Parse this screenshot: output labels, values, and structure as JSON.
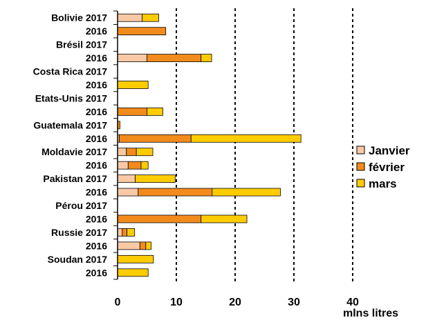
{
  "chart_data": {
    "type": "bar",
    "orientation": "horizontal",
    "stacked": true,
    "categories": [
      "Bolivie 2017",
      "2016",
      "Brésil 2017",
      "2016",
      "Costa Rica 2017",
      "2016",
      "Etats-Unis 2017",
      "2016",
      "Guatemala 2017",
      "2016",
      "Moldavie 2017",
      "2016",
      "Pakistan 2017",
      "2016",
      "Pérou 2017",
      "2016",
      "Russie 2017",
      "2016",
      "Soudan 2017",
      "2016"
    ],
    "series": [
      {
        "name": "Janvier",
        "color": "#F9C9A6",
        "values": [
          4.2,
          0,
          0,
          5.0,
          0,
          0,
          0,
          0,
          0,
          0.3,
          1.5,
          1.8,
          3.0,
          3.5,
          0,
          0,
          0.8,
          3.8,
          0,
          0
        ]
      },
      {
        "name": "février",
        "color": "#F28B1C",
        "values": [
          0,
          8.2,
          0,
          9.2,
          0,
          0,
          0,
          5.0,
          0.4,
          12.2,
          1.7,
          2.2,
          0,
          12.6,
          0,
          14.2,
          0.8,
          1.0,
          0,
          0
        ]
      },
      {
        "name": "mars",
        "color": "#FFCC00",
        "values": [
          2.8,
          0,
          0,
          1.8,
          0,
          5.2,
          0,
          2.7,
          0,
          18.7,
          2.8,
          1.2,
          6.8,
          11.6,
          0,
          7.8,
          1.3,
          0.9,
          6.1,
          5.2
        ]
      }
    ],
    "xlim": [
      0,
      40
    ],
    "xticks": [
      0,
      10,
      20,
      30,
      40
    ],
    "xlabel": "mlns litres",
    "gridlines": "vertical dashed at 10, 20, 30, 40",
    "legend_position": "right"
  }
}
